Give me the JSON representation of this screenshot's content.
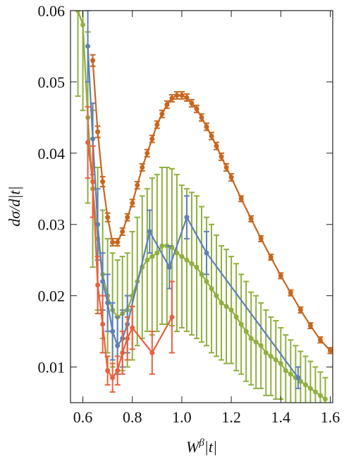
{
  "chart_data": {
    "type": "errorbar",
    "y_label": "dσ/d|t|",
    "x_label": [
      "W",
      "β",
      "|t|"
    ],
    "xlim": [
      0.55,
      1.61
    ],
    "ylim": [
      0.005,
      0.06
    ],
    "xticks": [
      0.6,
      0.8,
      {
        "value": 1,
        "label": "1.0"
      },
      1.2,
      1.4,
      1.6
    ],
    "yticks": [
      0.01,
      0.02,
      0.03,
      0.04,
      0.05,
      0.06
    ],
    "series": [
      {
        "color": "#8fb03e",
        "x": [
          0.58,
          0.6,
          0.62,
          0.64,
          0.66,
          0.68,
          0.7,
          0.72,
          0.74,
          0.76,
          0.78,
          0.8,
          0.82,
          0.84,
          0.86,
          0.88,
          0.9,
          0.92,
          0.94,
          0.96,
          0.98,
          1.0,
          1.02,
          1.04,
          1.06,
          1.08,
          1.1,
          1.12,
          1.14,
          1.16,
          1.18,
          1.2,
          1.22,
          1.24,
          1.26,
          1.28,
          1.3,
          1.32,
          1.34,
          1.36,
          1.38,
          1.4,
          1.42,
          1.44,
          1.46,
          1.48,
          1.5,
          1.52,
          1.54,
          1.56,
          1.58
        ],
        "values": [
          0.06,
          0.058,
          0.045,
          0.035,
          0.028,
          0.023,
          0.02,
          0.018,
          0.017,
          0.0175,
          0.018,
          0.02,
          0.022,
          0.024,
          0.025,
          0.0255,
          0.026,
          0.027,
          0.027,
          0.0268,
          0.026,
          0.0255,
          0.025,
          0.0245,
          0.024,
          0.023,
          0.022,
          0.021,
          0.02,
          0.019,
          0.0185,
          0.018,
          0.017,
          0.016,
          0.015,
          0.014,
          0.0135,
          0.013,
          0.012,
          0.0115,
          0.011,
          0.0105,
          0.0095,
          0.009,
          0.0085,
          0.008,
          0.0075,
          0.007,
          0.0065,
          0.006,
          0.0055
        ],
        "errors": [
          0.012,
          0.012,
          0.012,
          0.011,
          0.01,
          0.009,
          0.008,
          0.008,
          0.008,
          0.008,
          0.008,
          0.009,
          0.009,
          0.01,
          0.01,
          0.011,
          0.011,
          0.011,
          0.011,
          0.011,
          0.011,
          0.01,
          0.01,
          0.01,
          0.01,
          0.0095,
          0.009,
          0.009,
          0.0085,
          0.008,
          0.008,
          0.0075,
          0.0075,
          0.007,
          0.007,
          0.0065,
          0.0065,
          0.006,
          0.006,
          0.0055,
          0.0055,
          0.005,
          0.005,
          0.0048,
          0.0045,
          0.0042,
          0.004,
          0.0038,
          0.0035,
          0.0033,
          0.003
        ]
      },
      {
        "color": "#5e81b5",
        "x": [
          0.62,
          0.64,
          0.66,
          0.68,
          0.7,
          0.72,
          0.74,
          0.76,
          0.78,
          0.87,
          0.95,
          1.02,
          1.1,
          1.47
        ],
        "values": [
          0.055,
          0.042,
          0.03,
          0.022,
          0.019,
          0.015,
          0.013,
          0.014,
          0.016,
          0.029,
          0.024,
          0.031,
          0.026,
          0.0085
        ],
        "errors": [
          0.005,
          0.005,
          0.005,
          0.004,
          0.004,
          0.004,
          0.004,
          0.004,
          0.004,
          0.003,
          0.003,
          0.003,
          0.003,
          0.0015
        ]
      },
      {
        "color": "#e8613c",
        "x": [
          0.62,
          0.64,
          0.66,
          0.68,
          0.7,
          0.72,
          0.74,
          0.76,
          0.78,
          0.8,
          0.88,
          0.96
        ],
        "values": [
          0.0415,
          0.036,
          0.0215,
          0.016,
          0.0095,
          0.0085,
          0.0095,
          0.012,
          0.014,
          0.0155,
          0.012,
          0.017
        ],
        "errors": [
          0.005,
          0.005,
          0.004,
          0.004,
          0.002,
          0.002,
          0.002,
          0.003,
          0.003,
          0.003,
          0.003,
          0.005
        ]
      },
      {
        "color": "#c8661e",
        "x": [
          0.64,
          0.66,
          0.68,
          0.7,
          0.72,
          0.74,
          0.76,
          0.78,
          0.8,
          0.82,
          0.84,
          0.86,
          0.88,
          0.9,
          0.92,
          0.94,
          0.96,
          0.98,
          1.0,
          1.02,
          1.04,
          1.06,
          1.08,
          1.1,
          1.12,
          1.14,
          1.16,
          1.18,
          1.2,
          1.24,
          1.28,
          1.32,
          1.36,
          1.4,
          1.44,
          1.48,
          1.52,
          1.56,
          1.6
        ],
        "values": [
          0.053,
          0.043,
          0.036,
          0.031,
          0.0275,
          0.0275,
          0.029,
          0.031,
          0.033,
          0.0355,
          0.038,
          0.04,
          0.042,
          0.044,
          0.0455,
          0.0468,
          0.0477,
          0.0481,
          0.0481,
          0.0478,
          0.047,
          0.0462,
          0.045,
          0.0437,
          0.0424,
          0.041,
          0.0395,
          0.038,
          0.0366,
          0.0336,
          0.0308,
          0.028,
          0.0254,
          0.0228,
          0.0204,
          0.018,
          0.0158,
          0.0138,
          0.0123
        ],
        "errors": [
          0.0008,
          0.0008,
          0.0007,
          0.0006,
          0.0005,
          0.0005,
          0.0005,
          0.0005,
          0.0005,
          0.0005,
          0.0005,
          0.0005,
          0.0005,
          0.0005,
          0.0005,
          0.0005,
          0.0005,
          0.0005,
          0.0005,
          0.0005,
          0.0005,
          0.0005,
          0.0005,
          0.0005,
          0.0005,
          0.0005,
          0.0005,
          0.0005,
          0.0005,
          0.0004,
          0.0004,
          0.0004,
          0.0004,
          0.0004,
          0.0004,
          0.0004,
          0.0004,
          0.0004,
          0.0004
        ]
      }
    ]
  }
}
